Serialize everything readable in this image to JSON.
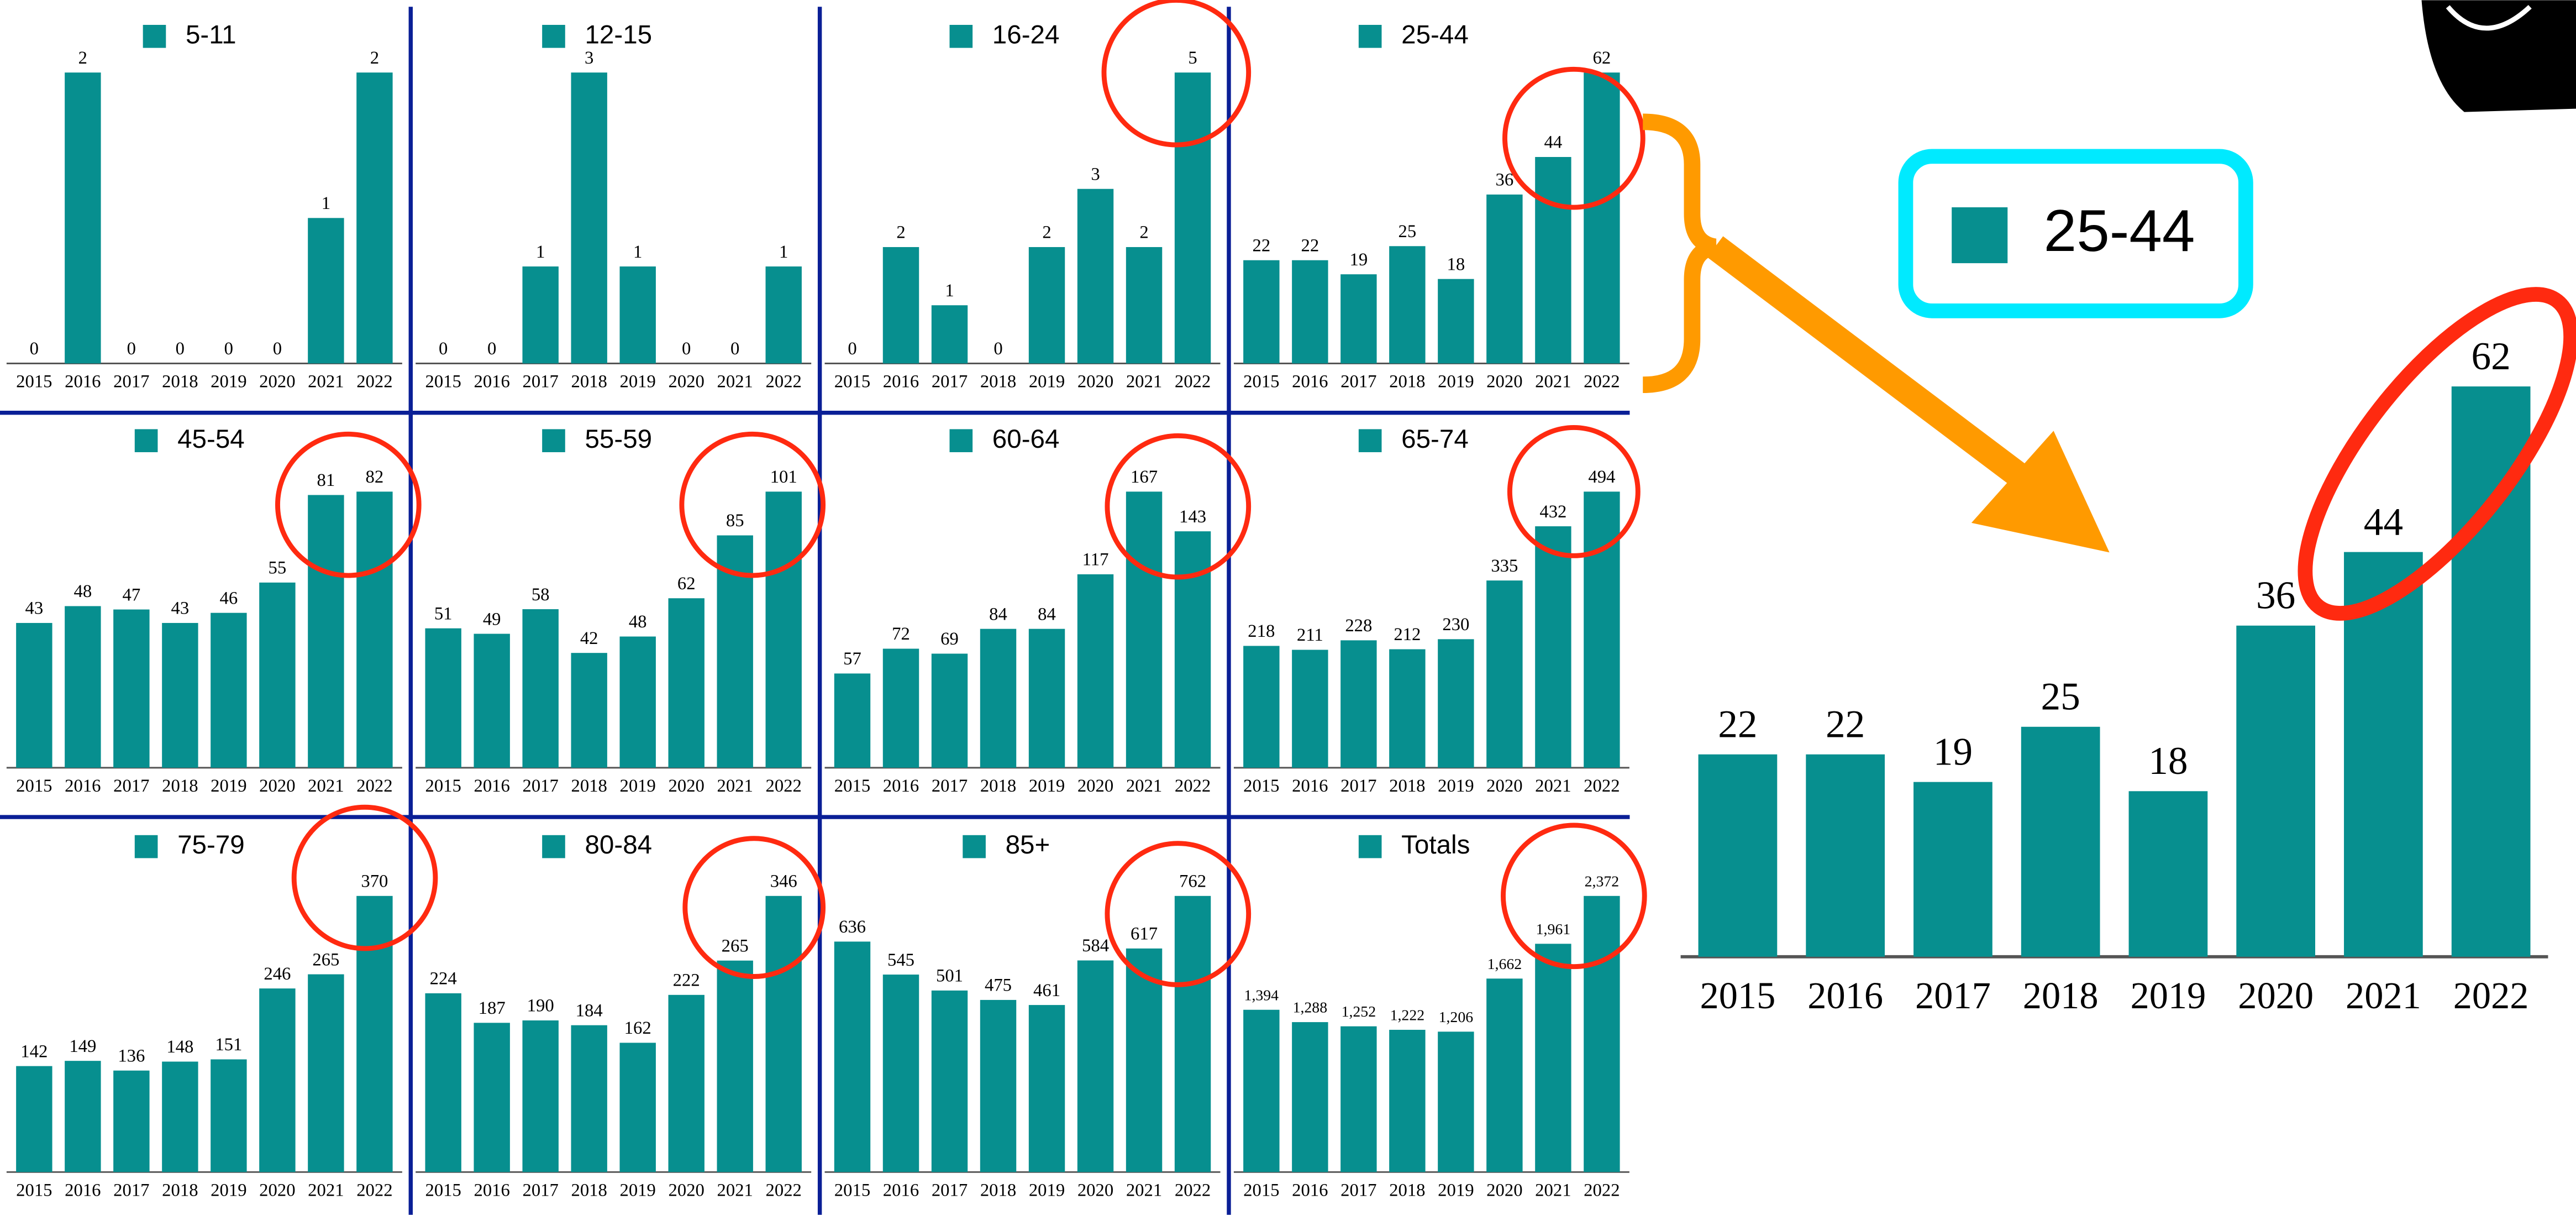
{
  "chart_data": [
    {
      "type": "bar",
      "categories": [
        "2015",
        "2016",
        "2017",
        "2018",
        "2019",
        "2020",
        "2021",
        "2022"
      ],
      "series": [
        {
          "name": "5-11",
          "color": "#078f8f",
          "values": [
            0,
            2,
            0,
            0,
            0,
            0,
            1,
            2
          ]
        }
      ]
    },
    {
      "type": "bar",
      "categories": [
        "2015",
        "2016",
        "2017",
        "2018",
        "2019",
        "2020",
        "2021",
        "2022"
      ],
      "series": [
        {
          "name": "12-15",
          "color": "#078f8f",
          "values": [
            0,
            0,
            1,
            3,
            1,
            0,
            0,
            1
          ]
        }
      ]
    },
    {
      "type": "bar",
      "categories": [
        "2015",
        "2016",
        "2017",
        "2018",
        "2019",
        "2020",
        "2021",
        "2022"
      ],
      "series": [
        {
          "name": "16-24",
          "color": "#078f8f",
          "values": [
            0,
            2,
            1,
            0,
            2,
            3,
            2,
            5
          ]
        }
      ]
    },
    {
      "type": "bar",
      "categories": [
        "2015",
        "2016",
        "2017",
        "2018",
        "2019",
        "2020",
        "2021",
        "2022"
      ],
      "series": [
        {
          "name": "25-44",
          "color": "#078f8f",
          "values": [
            22,
            22,
            19,
            25,
            18,
            36,
            44,
            62
          ]
        }
      ]
    },
    {
      "type": "bar",
      "categories": [
        "2015",
        "2016",
        "2017",
        "2018",
        "2019",
        "2020",
        "2021",
        "2022"
      ],
      "series": [
        {
          "name": "45-54",
          "color": "#078f8f",
          "values": [
            43,
            48,
            47,
            43,
            46,
            55,
            81,
            82
          ]
        }
      ]
    },
    {
      "type": "bar",
      "categories": [
        "2015",
        "2016",
        "2017",
        "2018",
        "2019",
        "2020",
        "2021",
        "2022"
      ],
      "series": [
        {
          "name": "55-59",
          "color": "#078f8f",
          "values": [
            51,
            49,
            58,
            42,
            48,
            62,
            85,
            101
          ]
        }
      ]
    },
    {
      "type": "bar",
      "categories": [
        "2015",
        "2016",
        "2017",
        "2018",
        "2019",
        "2020",
        "2021",
        "2022"
      ],
      "series": [
        {
          "name": "60-64",
          "color": "#078f8f",
          "values": [
            57,
            72,
            69,
            84,
            84,
            117,
            167,
            143
          ]
        }
      ]
    },
    {
      "type": "bar",
      "categories": [
        "2015",
        "2016",
        "2017",
        "2018",
        "2019",
        "2020",
        "2021",
        "2022"
      ],
      "series": [
        {
          "name": "65-74",
          "color": "#078f8f",
          "values": [
            218,
            211,
            228,
            212,
            230,
            335,
            432,
            494
          ]
        }
      ]
    },
    {
      "type": "bar",
      "categories": [
        "2015",
        "2016",
        "2017",
        "2018",
        "2019",
        "2020",
        "2021",
        "2022"
      ],
      "series": [
        {
          "name": "75-79",
          "color": "#078f8f",
          "values": [
            142,
            149,
            136,
            148,
            151,
            246,
            265,
            370
          ]
        }
      ]
    },
    {
      "type": "bar",
      "categories": [
        "2015",
        "2016",
        "2017",
        "2018",
        "2019",
        "2020",
        "2021",
        "2022"
      ],
      "series": [
        {
          "name": "80-84",
          "color": "#078f8f",
          "values": [
            224,
            187,
            190,
            184,
            162,
            222,
            265,
            346
          ]
        }
      ]
    },
    {
      "type": "bar",
      "categories": [
        "2015",
        "2016",
        "2017",
        "2018",
        "2019",
        "2020",
        "2021",
        "2022"
      ],
      "series": [
        {
          "name": "85+",
          "color": "#078f8f",
          "values": [
            636,
            545,
            501,
            475,
            461,
            584,
            617,
            762
          ]
        }
      ]
    },
    {
      "type": "bar",
      "categories": [
        "2015",
        "2016",
        "2017",
        "2018",
        "2019",
        "2020",
        "2021",
        "2022"
      ],
      "series": [
        {
          "name": "Totals",
          "color": "#078f8f",
          "values": [
            1394,
            1288,
            1252,
            1222,
            1206,
            1662,
            1961,
            2372
          ],
          "value_labels": [
            "1,394",
            "1,288",
            "1,252",
            "1,222",
            "1,206",
            "1,662",
            "1,961",
            "2,372"
          ]
        }
      ]
    }
  ]
}
